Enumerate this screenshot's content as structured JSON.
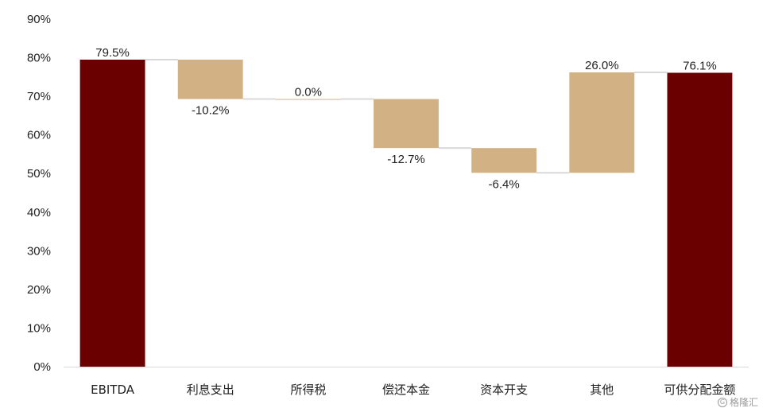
{
  "chart_data": {
    "type": "bar",
    "subtype": "waterfall",
    "title": "",
    "xlabel": "",
    "ylabel": "",
    "ylim": [
      0,
      90
    ],
    "yticks": [
      0,
      10,
      20,
      30,
      40,
      50,
      60,
      70,
      80,
      90
    ],
    "ytick_labels": [
      "0%",
      "10%",
      "20%",
      "30%",
      "40%",
      "50%",
      "60%",
      "70%",
      "80%",
      "90%"
    ],
    "grid": false,
    "legend": "none",
    "categories": [
      "EBITDA",
      "利息支出",
      "所得税",
      "偿还本金",
      "资本开支",
      "其他",
      "可供分配金额"
    ],
    "values": [
      79.5,
      -10.2,
      0.0,
      -12.7,
      -6.4,
      26.0,
      76.1
    ],
    "bar_kind": [
      "total",
      "delta",
      "delta",
      "delta",
      "delta",
      "delta",
      "total"
    ],
    "data_labels": [
      "79.5%",
      "-10.2%",
      "0.0%",
      "-12.7%",
      "-6.4%",
      "26.0%",
      "76.1%"
    ],
    "colors": {
      "total": "#6b0000",
      "delta": "#d2b285",
      "connector": "#d9d9d9"
    }
  },
  "watermark": {
    "text": "格隆汇",
    "icon": "logo-circle-icon"
  }
}
